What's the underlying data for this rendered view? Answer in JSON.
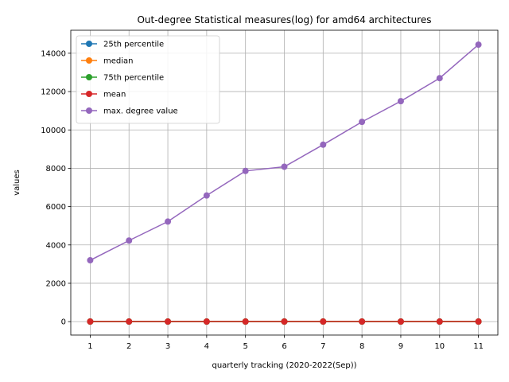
{
  "chart_data": {
    "type": "line",
    "title": "Out-degree Statistical measures(log) for amd64 architectures",
    "xlabel": "quarterly tracking (2020-2022(Sep))",
    "ylabel": "values",
    "x": [
      1,
      2,
      3,
      4,
      5,
      6,
      7,
      8,
      9,
      10,
      11
    ],
    "xlim": [
      0.5,
      11.5
    ],
    "ylim": [
      -700,
      15200
    ],
    "yticks": [
      0,
      2000,
      4000,
      6000,
      8000,
      10000,
      12000,
      14000
    ],
    "grid": true,
    "legend_position": "top-left",
    "series": [
      {
        "name": "25th percentile",
        "color": "#1f77b4",
        "values": [
          1,
          1,
          1,
          1,
          1,
          1,
          1,
          1,
          1,
          1,
          1
        ]
      },
      {
        "name": "median",
        "color": "#ff7f0e",
        "values": [
          2,
          2,
          2,
          2,
          2,
          2,
          2,
          2,
          2,
          2,
          2
        ]
      },
      {
        "name": "75th percentile",
        "color": "#2ca02c",
        "values": [
          4,
          4,
          4,
          4,
          4,
          4,
          4,
          4,
          4,
          4,
          4
        ]
      },
      {
        "name": "mean",
        "color": "#d62728",
        "values": [
          5,
          5,
          5,
          5,
          5,
          5,
          5,
          5,
          5,
          5,
          5
        ]
      },
      {
        "name": "max. degree value",
        "color": "#9467bd",
        "values": [
          3200,
          4230,
          5220,
          6580,
          7860,
          8080,
          9230,
          10420,
          11500,
          12700,
          14450
        ]
      }
    ]
  }
}
